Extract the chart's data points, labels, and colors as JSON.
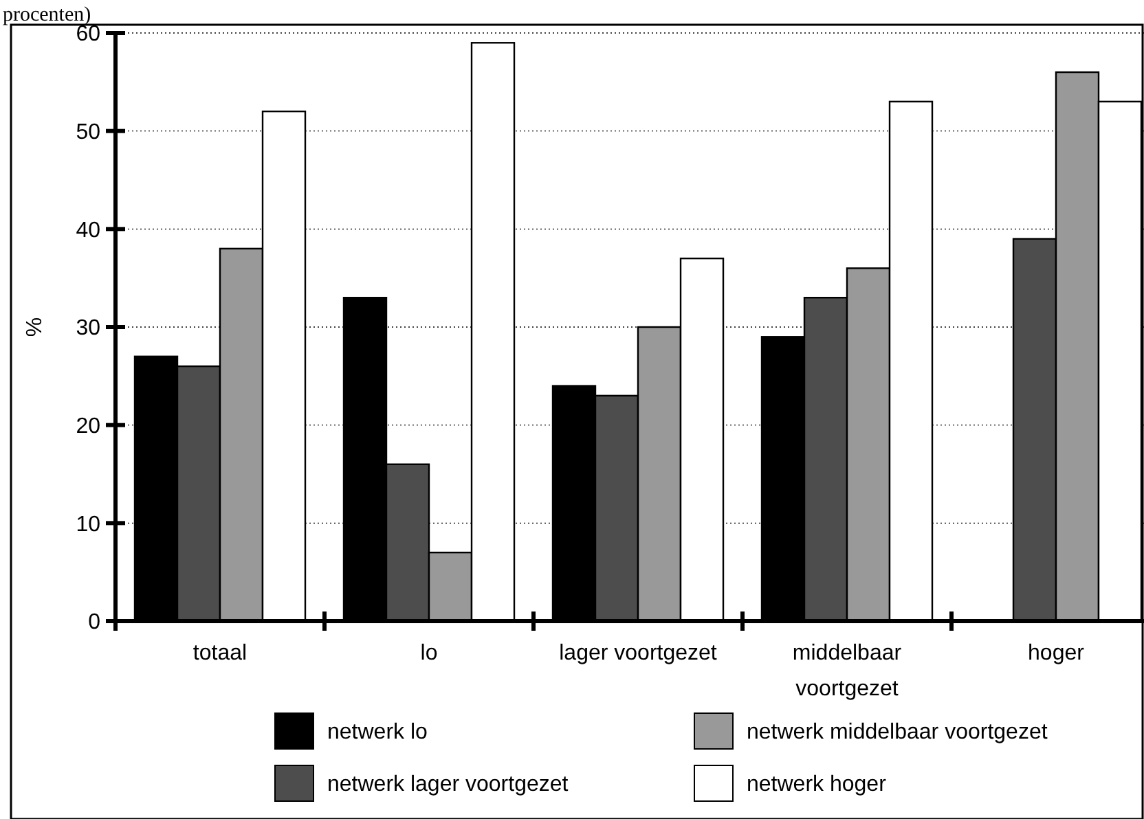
{
  "chart_data": {
    "type": "bar",
    "title": "procenten)",
    "ylabel": "%",
    "categories": [
      "totaal",
      "lo",
      "lager voortgezet",
      "middelbaar voortgezet",
      "hoger"
    ],
    "series": [
      {
        "name": "netwerk lo",
        "color": "#000000",
        "values": [
          27,
          33,
          24,
          29,
          null
        ]
      },
      {
        "name": "netwerk lager voortgezet",
        "color": "#4d4d4d",
        "values": [
          26,
          16,
          23,
          33,
          39
        ]
      },
      {
        "name": "netwerk middelbaar voortgezet",
        "color": "#999999",
        "values": [
          38,
          7,
          30,
          36,
          56
        ]
      },
      {
        "name": "netwerk hoger",
        "color": "#ffffff",
        "values": [
          52,
          59,
          37,
          53,
          53
        ]
      }
    ],
    "ylim": [
      0,
      60
    ],
    "yticks": [
      0,
      10,
      20,
      30,
      40,
      50,
      60
    ],
    "grid": "y",
    "legend": "bottom"
  }
}
